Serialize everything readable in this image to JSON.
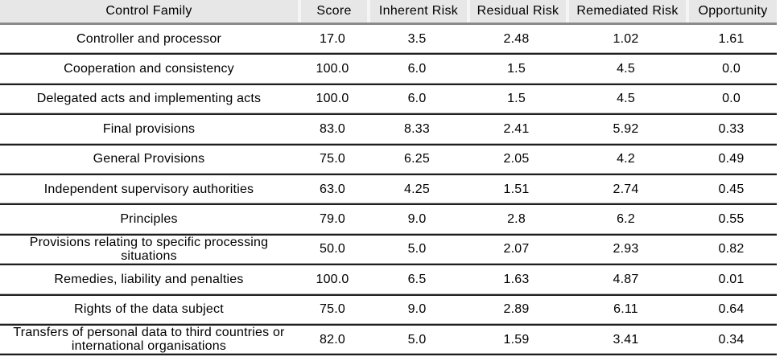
{
  "chart_data": {
    "type": "table",
    "columns": [
      "Control Family",
      "Score",
      "Inherent Risk",
      "Residual Risk",
      "Remediated Risk",
      "Opportunity"
    ],
    "rows": [
      [
        "Controller and processor",
        "17.0",
        "3.5",
        "2.48",
        "1.02",
        "1.61"
      ],
      [
        "Cooperation and consistency",
        "100.0",
        "6.0",
        "1.5",
        "4.5",
        "0.0"
      ],
      [
        "Delegated acts and implementing acts",
        "100.0",
        "6.0",
        "1.5",
        "4.5",
        "0.0"
      ],
      [
        "Final provisions",
        "83.0",
        "8.33",
        "2.41",
        "5.92",
        "0.33"
      ],
      [
        "General Provisions",
        "75.0",
        "6.25",
        "2.05",
        "4.2",
        "0.49"
      ],
      [
        "Independent supervisory authorities",
        "63.0",
        "4.25",
        "1.51",
        "2.74",
        "0.45"
      ],
      [
        "Principles",
        "79.0",
        "9.0",
        "2.8",
        "6.2",
        "0.55"
      ],
      [
        "Provisions relating to specific processing situations",
        "50.0",
        "5.0",
        "2.07",
        "2.93",
        "0.82"
      ],
      [
        "Remedies, liability and penalties",
        "100.0",
        "6.5",
        "1.63",
        "4.87",
        "0.01"
      ],
      [
        "Rights of the data subject",
        "75.0",
        "9.0",
        "2.89",
        "6.11",
        "0.64"
      ],
      [
        "Transfers of personal data to third countries or international organisations",
        "82.0",
        "5.0",
        "1.59",
        "3.41",
        "0.34"
      ]
    ]
  },
  "colors": {
    "header_bg": "#e7e7e7",
    "header_gap": "#f5f5f5",
    "header_rule": "#8a8a8a",
    "separator_light": "#b3b3b3",
    "separator_dark": "#1f1f1f",
    "text": "#000000",
    "page_bg": "#ffffff"
  }
}
